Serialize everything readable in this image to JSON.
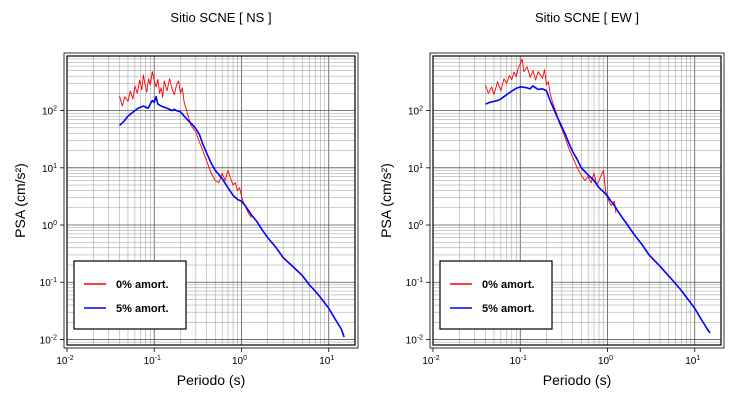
{
  "chart_data": [
    {
      "type": "line",
      "title": "Sitio SCNE [ NS ]",
      "xlabel": "Periodo (s)",
      "ylabel": "PSA (cm/s²)",
      "xscale": "log",
      "yscale": "log",
      "xlim": [
        0.01,
        20
      ],
      "ylim": [
        0.008,
        900
      ],
      "grid": true,
      "legend_position": "bottom-left",
      "xticks": [
        {
          "base": "10",
          "exp": "-2"
        },
        {
          "base": "10",
          "exp": "-1"
        },
        {
          "base": "10",
          "exp": "0"
        },
        {
          "base": "10",
          "exp": "1"
        }
      ],
      "yticks": [
        {
          "base": "10",
          "exp": "-2"
        },
        {
          "base": "10",
          "exp": "-1"
        },
        {
          "base": "10",
          "exp": "0"
        },
        {
          "base": "10",
          "exp": "1"
        },
        {
          "base": "10",
          "exp": "2"
        }
      ],
      "series": [
        {
          "name": "0% amort.",
          "color": "#ff0000",
          "points": [
            [
              0.04,
              180
            ],
            [
              0.043,
              120
            ],
            [
              0.046,
              175
            ],
            [
              0.05,
              145
            ],
            [
              0.053,
              220
            ],
            [
              0.057,
              160
            ],
            [
              0.06,
              270
            ],
            [
              0.064,
              200
            ],
            [
              0.068,
              340
            ],
            [
              0.072,
              230
            ],
            [
              0.075,
              420
            ],
            [
              0.078,
              300
            ],
            [
              0.082,
              210
            ],
            [
              0.086,
              360
            ],
            [
              0.09,
              280
            ],
            [
              0.095,
              480
            ],
            [
              0.1,
              330
            ],
            [
              0.105,
              260
            ],
            [
              0.11,
              350
            ],
            [
              0.115,
              200
            ],
            [
              0.12,
              250
            ],
            [
              0.125,
              170
            ],
            [
              0.13,
              330
            ],
            [
              0.14,
              220
            ],
            [
              0.15,
              360
            ],
            [
              0.16,
              240
            ],
            [
              0.17,
              190
            ],
            [
              0.18,
              280
            ],
            [
              0.19,
              330
            ],
            [
              0.2,
              200
            ],
            [
              0.21,
              250
            ],
            [
              0.22,
              140
            ],
            [
              0.24,
              90
            ],
            [
              0.26,
              58
            ],
            [
              0.28,
              48
            ],
            [
              0.3,
              42
            ],
            [
              0.33,
              28
            ],
            [
              0.36,
              20
            ],
            [
              0.4,
              13
            ],
            [
              0.45,
              8
            ],
            [
              0.5,
              6
            ],
            [
              0.55,
              5.5
            ],
            [
              0.6,
              8
            ],
            [
              0.65,
              6
            ],
            [
              0.7,
              9
            ],
            [
              0.75,
              6.5
            ],
            [
              0.8,
              5
            ],
            [
              0.85,
              5.5
            ],
            [
              0.9,
              4
            ],
            [
              0.95,
              4.5
            ],
            [
              1.0,
              3.2
            ],
            [
              1.05,
              2.5
            ],
            [
              1.1,
              2.2
            ],
            [
              1.2,
              1.6
            ],
            [
              1.3,
              1.35
            ]
          ]
        },
        {
          "name": "5% amort.",
          "color": "#0000ff",
          "points": [
            [
              0.04,
              55
            ],
            [
              0.045,
              65
            ],
            [
              0.05,
              80
            ],
            [
              0.055,
              90
            ],
            [
              0.06,
              100
            ],
            [
              0.065,
              110
            ],
            [
              0.07,
              115
            ],
            [
              0.075,
              120
            ],
            [
              0.08,
              115
            ],
            [
              0.085,
              110
            ],
            [
              0.09,
              130
            ],
            [
              0.095,
              150
            ],
            [
              0.1,
              140
            ],
            [
              0.105,
              175
            ],
            [
              0.11,
              130
            ],
            [
              0.12,
              120
            ],
            [
              0.13,
              115
            ],
            [
              0.14,
              110
            ],
            [
              0.15,
              105
            ],
            [
              0.16,
              100
            ],
            [
              0.17,
              105
            ],
            [
              0.18,
              100
            ],
            [
              0.2,
              95
            ],
            [
              0.22,
              80
            ],
            [
              0.25,
              65
            ],
            [
              0.28,
              55
            ],
            [
              0.3,
              48
            ],
            [
              0.33,
              38
            ],
            [
              0.36,
              26
            ],
            [
              0.4,
              18
            ],
            [
              0.45,
              12
            ],
            [
              0.5,
              9
            ],
            [
              0.6,
              6.5
            ],
            [
              0.7,
              4.5
            ],
            [
              0.8,
              3.3
            ],
            [
              0.9,
              2.8
            ],
            [
              1.0,
              2.6
            ],
            [
              1.1,
              2.2
            ],
            [
              1.2,
              1.8
            ],
            [
              1.3,
              1.5
            ],
            [
              1.5,
              1.15
            ],
            [
              1.7,
              0.85
            ],
            [
              2.0,
              0.6
            ],
            [
              2.5,
              0.4
            ],
            [
              3.0,
              0.27
            ],
            [
              4.0,
              0.18
            ],
            [
              5.0,
              0.13
            ],
            [
              6.0,
              0.09
            ],
            [
              7.0,
              0.07
            ],
            [
              8.0,
              0.055
            ],
            [
              10.0,
              0.035
            ],
            [
              12.0,
              0.022
            ],
            [
              14.0,
              0.015
            ],
            [
              15.0,
              0.011
            ]
          ]
        }
      ]
    },
    {
      "type": "line",
      "title": "Sitio SCNE [ EW ]",
      "xlabel": "Periodo (s)",
      "ylabel": "PSA (cm/s²)",
      "xscale": "log",
      "yscale": "log",
      "xlim": [
        0.01,
        20
      ],
      "ylim": [
        0.008,
        900
      ],
      "grid": true,
      "legend_position": "bottom-left",
      "xticks": [
        {
          "base": "10",
          "exp": "-2"
        },
        {
          "base": "10",
          "exp": "-1"
        },
        {
          "base": "10",
          "exp": "0"
        },
        {
          "base": "10",
          "exp": "1"
        }
      ],
      "yticks": [
        {
          "base": "10",
          "exp": "-2"
        },
        {
          "base": "10",
          "exp": "-1"
        },
        {
          "base": "10",
          "exp": "0"
        },
        {
          "base": "10",
          "exp": "1"
        },
        {
          "base": "10",
          "exp": "2"
        }
      ],
      "series": [
        {
          "name": "0% amort.",
          "color": "#ff0000",
          "points": [
            [
              0.04,
              280
            ],
            [
              0.043,
              200
            ],
            [
              0.047,
              260
            ],
            [
              0.05,
              190
            ],
            [
              0.055,
              320
            ],
            [
              0.06,
              220
            ],
            [
              0.065,
              360
            ],
            [
              0.07,
              300
            ],
            [
              0.075,
              410
            ],
            [
              0.08,
              350
            ],
            [
              0.085,
              470
            ],
            [
              0.09,
              390
            ],
            [
              0.095,
              560
            ],
            [
              0.1,
              650
            ],
            [
              0.105,
              800
            ],
            [
              0.11,
              480
            ],
            [
              0.12,
              580
            ],
            [
              0.13,
              380
            ],
            [
              0.14,
              500
            ],
            [
              0.15,
              340
            ],
            [
              0.16,
              480
            ],
            [
              0.17,
              420
            ],
            [
              0.18,
              370
            ],
            [
              0.19,
              520
            ],
            [
              0.2,
              280
            ],
            [
              0.21,
              320
            ],
            [
              0.22,
              200
            ],
            [
              0.24,
              125
            ],
            [
              0.26,
              90
            ],
            [
              0.28,
              60
            ],
            [
              0.3,
              48
            ],
            [
              0.33,
              32
            ],
            [
              0.36,
              22
            ],
            [
              0.4,
              15
            ],
            [
              0.45,
              10
            ],
            [
              0.5,
              7.5
            ],
            [
              0.55,
              6
            ],
            [
              0.6,
              7
            ],
            [
              0.65,
              5.5
            ],
            [
              0.7,
              8
            ],
            [
              0.75,
              5
            ],
            [
              0.8,
              6
            ],
            [
              0.85,
              7.5
            ],
            [
              0.9,
              9
            ],
            [
              0.95,
              4
            ],
            [
              1.0,
              3
            ],
            [
              1.05,
              2.5
            ],
            [
              1.1,
              2.2
            ],
            [
              1.2,
              2.6
            ],
            [
              1.25,
              1.6
            ]
          ]
        },
        {
          "name": "5% amort.",
          "color": "#0000ff",
          "points": [
            [
              0.04,
              130
            ],
            [
              0.045,
              140
            ],
            [
              0.05,
              145
            ],
            [
              0.055,
              150
            ],
            [
              0.06,
              160
            ],
            [
              0.065,
              175
            ],
            [
              0.07,
              190
            ],
            [
              0.08,
              220
            ],
            [
              0.09,
              245
            ],
            [
              0.1,
              260
            ],
            [
              0.11,
              255
            ],
            [
              0.12,
              250
            ],
            [
              0.13,
              240
            ],
            [
              0.14,
              270
            ],
            [
              0.15,
              250
            ],
            [
              0.16,
              235
            ],
            [
              0.18,
              240
            ],
            [
              0.2,
              220
            ],
            [
              0.22,
              150
            ],
            [
              0.25,
              95
            ],
            [
              0.28,
              65
            ],
            [
              0.3,
              52
            ],
            [
              0.33,
              38
            ],
            [
              0.36,
              27
            ],
            [
              0.4,
              19
            ],
            [
              0.45,
              14
            ],
            [
              0.5,
              10
            ],
            [
              0.6,
              7.5
            ],
            [
              0.7,
              6
            ],
            [
              0.8,
              4.5
            ],
            [
              0.9,
              3.8
            ],
            [
              1.0,
              3.2
            ],
            [
              1.1,
              2.6
            ],
            [
              1.2,
              2.2
            ],
            [
              1.3,
              1.8
            ],
            [
              1.5,
              1.3
            ],
            [
              1.7,
              1.0
            ],
            [
              2.0,
              0.7
            ],
            [
              2.5,
              0.45
            ],
            [
              3.0,
              0.3
            ],
            [
              4.0,
              0.19
            ],
            [
              5.0,
              0.13
            ],
            [
              6.0,
              0.095
            ],
            [
              7.0,
              0.072
            ],
            [
              8.0,
              0.055
            ],
            [
              10.0,
              0.035
            ],
            [
              12.0,
              0.022
            ],
            [
              14.0,
              0.015
            ],
            [
              15.0,
              0.013
            ]
          ]
        }
      ]
    }
  ]
}
